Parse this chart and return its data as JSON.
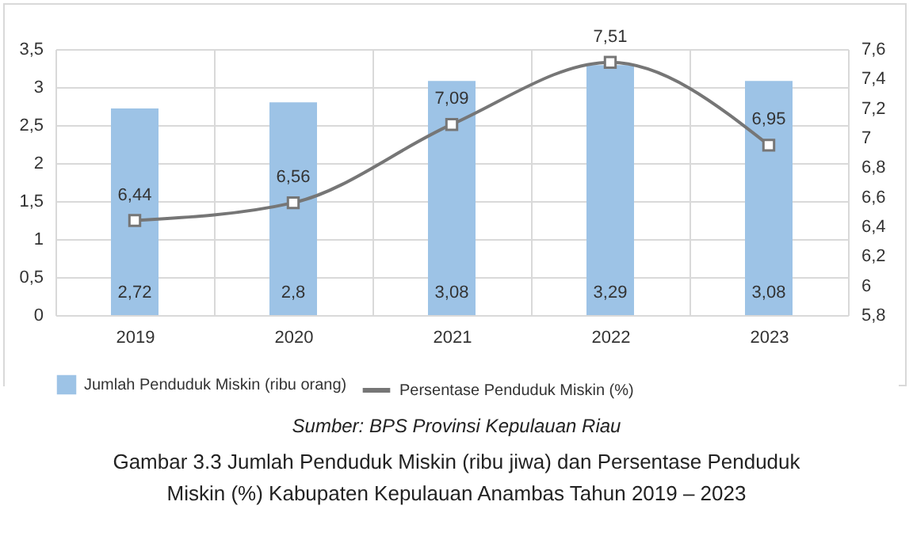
{
  "chart_data": {
    "type": "bar",
    "title": "Gambar 3.3 Jumlah Penduduk Miskin (ribu jiwa) dan Persentase Penduduk Miskin (%) Kabupaten Kepulauan Anambas Tahun 2019 – 2023",
    "annotations": [
      "Sumber: BPS Provinsi Kepulauan Riau"
    ],
    "categories": [
      "2019",
      "2020",
      "2021",
      "2022",
      "2023"
    ],
    "series": [
      {
        "name": "Jumlah Penduduk Miskin (ribu orang)",
        "color": "#9dc3e6",
        "values": [
          2.72,
          2.8,
          3.08,
          3.29,
          3.08
        ],
        "value_labels": [
          "2,72",
          "2,8",
          "3,08",
          "3,29",
          "3,08"
        ]
      },
      {
        "name": "Persentase Penduduk Miskin (%)",
        "type": "line",
        "axis": "y2",
        "color": "#767676",
        "values": [
          6.44,
          6.56,
          7.09,
          7.51,
          6.95
        ],
        "value_labels": [
          "6,44",
          "6,56",
          "7,09",
          "7,51",
          "6,95"
        ]
      }
    ],
    "ylim": [
      0,
      3.5
    ],
    "yticks": [
      0,
      {
        "value": 0.5,
        "label": "0,5"
      },
      1,
      {
        "value": 1.5,
        "label": "1,5"
      },
      2,
      {
        "value": 2.5,
        "label": "2,5"
      },
      3,
      {
        "value": 3.5,
        "label": "3,5"
      }
    ],
    "y2lim": [
      5.8,
      7.6
    ],
    "y2ticks": [
      {
        "value": 5.8,
        "label": "5,8"
      },
      6,
      {
        "value": 6.2,
        "label": "6,2"
      },
      {
        "value": 6.4,
        "label": "6,4"
      },
      {
        "value": 6.6,
        "label": "6,6"
      },
      {
        "value": 6.8,
        "label": "6,8"
      },
      7,
      {
        "value": 7.2,
        "label": "7,2"
      },
      {
        "value": 7.4,
        "label": "7,4"
      },
      {
        "value": 7.6,
        "label": "7,6"
      }
    ],
    "grid": true,
    "legend": "bottom",
    "marker": "square",
    "line_style": "solid"
  }
}
